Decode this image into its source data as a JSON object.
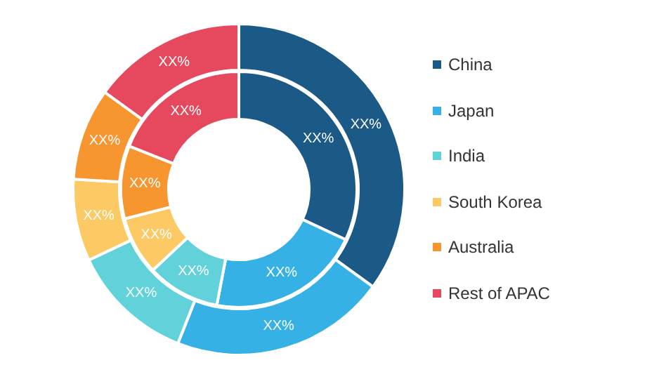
{
  "chart_data": {
    "type": "donut",
    "categories": [
      "China",
      "Japan",
      "India",
      "South Korea",
      "Australia",
      "Rest of APAC"
    ],
    "colors": [
      "#1b5a86",
      "#35b1e5",
      "#62d2da",
      "#fdc964",
      "#f7952f",
      "#e6485d"
    ],
    "series": [
      {
        "values": [
          32,
          21,
          10,
          8,
          10,
          19
        ],
        "value_labels": [
          "XX%",
          "XX%",
          "XX%",
          "XX%",
          "XX%",
          "XX%"
        ]
      },
      {
        "values": [
          35,
          21,
          12,
          8,
          9,
          15
        ],
        "value_labels": [
          "XX%",
          "XX%",
          "XX%",
          "XX%",
          "XX%",
          "XX%"
        ]
      }
    ],
    "legend": "right"
  }
}
